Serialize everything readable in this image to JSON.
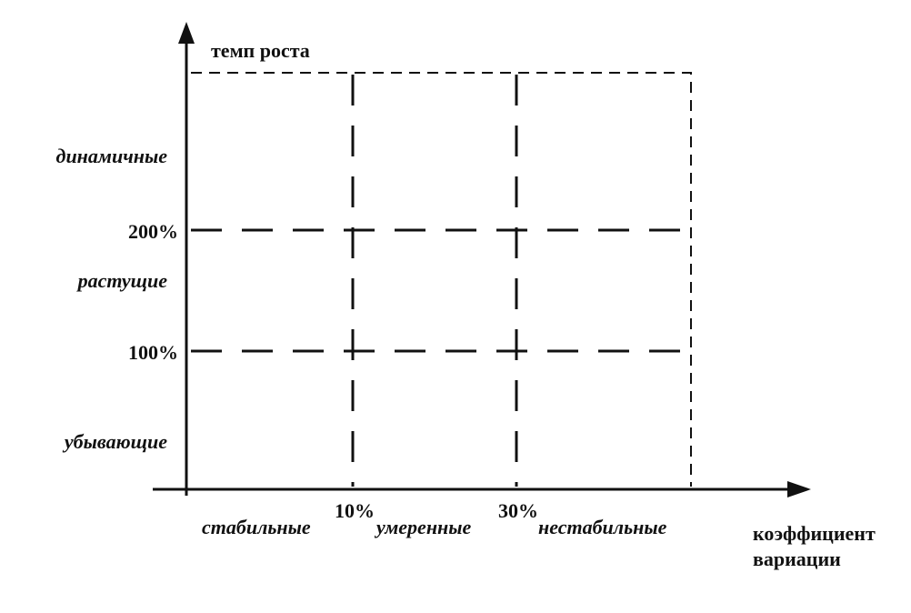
{
  "y_axis": {
    "title": "темп роста",
    "ticks": [
      "200%",
      "100%"
    ]
  },
  "x_axis": {
    "title": [
      "коэффициент",
      "вариации"
    ],
    "ticks": [
      "10%",
      "30%"
    ]
  },
  "rows": [
    "динамичные",
    "растущие",
    "убывающие"
  ],
  "columns": [
    "стабильные",
    "умеренные",
    "нестабильные"
  ]
}
